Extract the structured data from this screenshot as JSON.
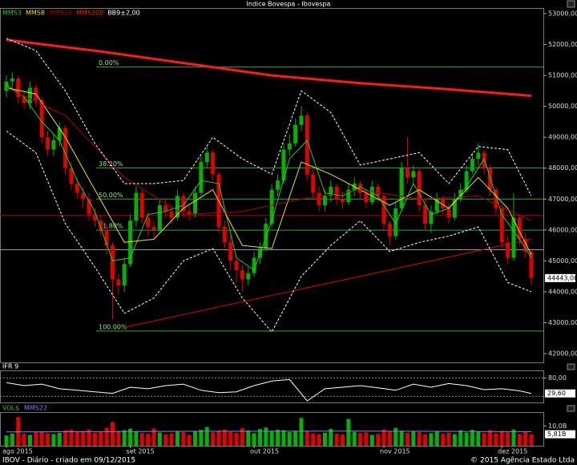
{
  "chart_data": [
    {
      "type": "candlestick",
      "title": "Indice Bovespa - Ibovespa",
      "up_color": "#00b400",
      "down_color": "#e00000",
      "open": [
        50500,
        50800,
        50900,
        50300,
        50100,
        50600,
        50200,
        49000,
        48600,
        48900,
        49300,
        48000,
        47500,
        47200,
        47000,
        46500,
        46300,
        46000,
        45500,
        44400,
        44200,
        44900,
        46300,
        47200,
        46400,
        46100,
        46000,
        46800,
        46600,
        46400,
        47100,
        46600,
        46500,
        47200,
        48200,
        48500,
        47800,
        46100,
        45600,
        45000,
        44700,
        44400,
        44600,
        45100,
        45400,
        46200,
        47300,
        47600,
        48600,
        48800,
        49400,
        49700,
        47800,
        47200,
        46800,
        47100,
        47400,
        47000,
        46900,
        47300,
        47500,
        47200,
        46900,
        47400,
        47100,
        46200,
        45800,
        46700,
        48000,
        47700,
        47900,
        46800,
        46200,
        46600,
        47000,
        46700,
        46400,
        47000,
        47300,
        47900,
        48300,
        48500,
        48000,
        47300,
        46700,
        45600,
        45100,
        46400,
        45700,
        45300
      ],
      "high": [
        51000,
        51100,
        51000,
        50500,
        50800,
        50700,
        50300,
        49200,
        49100,
        49500,
        49400,
        48200,
        47700,
        47400,
        47200,
        46700,
        46500,
        46200,
        45600,
        44600,
        45100,
        46500,
        47400,
        47300,
        46600,
        46300,
        47000,
        47000,
        46800,
        47300,
        47200,
        46800,
        47400,
        48400,
        48700,
        48600,
        47900,
        46300,
        45800,
        45200,
        44900,
        44800,
        45300,
        45600,
        46400,
        47500,
        47800,
        48800,
        49100,
        49600,
        50000,
        49800,
        48000,
        47400,
        47300,
        47600,
        47500,
        47200,
        47500,
        47700,
        47600,
        47300,
        47600,
        47500,
        47200,
        46300,
        46900,
        48200,
        49000,
        48100,
        48000,
        47000,
        46800,
        47200,
        47100,
        46900,
        47200,
        47500,
        48100,
        48500,
        48800,
        48600,
        48100,
        47400,
        46800,
        45800,
        47200,
        46500,
        45900,
        45400
      ],
      "low": [
        50300,
        50600,
        50100,
        49900,
        49900,
        50000,
        48800,
        48400,
        48400,
        48700,
        47800,
        47300,
        47000,
        46700,
        46300,
        46100,
        45800,
        45200,
        43100,
        43900,
        44000,
        44800,
        46100,
        46200,
        45800,
        45700,
        45900,
        46400,
        46200,
        46300,
        46400,
        46300,
        46400,
        47100,
        48000,
        47600,
        45900,
        45400,
        44700,
        44300,
        44000,
        44200,
        44500,
        44900,
        45300,
        46100,
        47100,
        47500,
        48400,
        48700,
        49200,
        47600,
        47000,
        46600,
        46600,
        46900,
        46800,
        46700,
        46800,
        47100,
        47000,
        46700,
        46800,
        46900,
        46000,
        45500,
        45700,
        46600,
        47500,
        47500,
        46600,
        46000,
        45900,
        46500,
        46500,
        46200,
        46300,
        46900,
        47200,
        47800,
        48100,
        47800,
        47100,
        46500,
        45400,
        44900,
        45000,
        45500,
        45100,
        44200
      ],
      "close": [
        50800,
        50900,
        50300,
        50100,
        50600,
        50200,
        49000,
        48600,
        48900,
        49300,
        48000,
        47500,
        47200,
        47000,
        46500,
        46300,
        46000,
        45500,
        44400,
        44200,
        44900,
        46300,
        47200,
        46400,
        46100,
        46000,
        46800,
        46600,
        46400,
        47100,
        46600,
        46500,
        47200,
        48200,
        48500,
        47800,
        46100,
        45600,
        45000,
        44700,
        44400,
        44600,
        45100,
        45400,
        46200,
        47300,
        47600,
        48600,
        48800,
        49400,
        49700,
        47800,
        47200,
        46800,
        47100,
        47400,
        47000,
        46900,
        47300,
        47500,
        47200,
        46900,
        47400,
        47100,
        46200,
        45800,
        46700,
        48000,
        47700,
        47900,
        46800,
        46200,
        46600,
        47000,
        46700,
        46400,
        47000,
        47300,
        47900,
        48300,
        48500,
        48000,
        47300,
        46700,
        45600,
        45100,
        46400,
        45700,
        45300,
        44443
      ],
      "last": {
        "value": 44443,
        "label": "44443,00"
      },
      "series": [
        {
          "name": "MMS3",
          "color": "#22cc22",
          "x": [
            0,
            3,
            6,
            9,
            12,
            15,
            18,
            21,
            24,
            27,
            30,
            33,
            36,
            39,
            42,
            45,
            48,
            51,
            54,
            57,
            60,
            63,
            66,
            69,
            72,
            75,
            78,
            81,
            84,
            87,
            89
          ],
          "values": [
            50700,
            50300,
            49500,
            48900,
            47600,
            46600,
            45000,
            45100,
            46500,
            46600,
            46800,
            47600,
            47500,
            45100,
            44700,
            46300,
            48300,
            48900,
            47200,
            47100,
            47400,
            47100,
            46200,
            47500,
            46500,
            46700,
            47400,
            48300,
            46500,
            45700,
            45100
          ]
        },
        {
          "name": "MMS8",
          "color": "#e6e600",
          "x": [
            0,
            5,
            10,
            15,
            20,
            25,
            30,
            35,
            40,
            45,
            50,
            55,
            60,
            65,
            70,
            75,
            80,
            85,
            89
          ],
          "values": [
            50600,
            50400,
            49000,
            47300,
            45600,
            45700,
            46700,
            47300,
            45500,
            45400,
            48200,
            47800,
            47300,
            46800,
            47300,
            46700,
            47700,
            46700,
            45200
          ]
        },
        {
          "name": "MMS20",
          "color": "#b00000",
          "x": [
            0,
            10,
            20,
            30,
            40,
            50,
            60,
            70,
            80,
            89
          ],
          "values": [
            50600,
            49700,
            47700,
            46500,
            46600,
            47000,
            47300,
            47000,
            47100,
            46300
          ]
        },
        {
          "name": "MMS200",
          "color": "#ff1a1a",
          "width": 3,
          "x": [
            0,
            15,
            30,
            45,
            60,
            75,
            89
          ],
          "values": [
            52150,
            51800,
            51400,
            51000,
            50750,
            50550,
            50340
          ]
        },
        {
          "name": "BB9±2,00",
          "color": "#ffffff",
          "dashed": true,
          "x": [
            0,
            5,
            10,
            15,
            20,
            25,
            30,
            35,
            40,
            45,
            50,
            55,
            60,
            65,
            70,
            75,
            80,
            85,
            89
          ],
          "upper": [
            52200,
            51800,
            50500,
            48800,
            47500,
            47500,
            47600,
            49000,
            48300,
            47800,
            50500,
            49800,
            48100,
            48300,
            48500,
            47500,
            48700,
            48600,
            47100
          ],
          "lower": [
            49200,
            48500,
            46200,
            44800,
            43300,
            43800,
            45000,
            45400,
            43800,
            42700,
            44500,
            45500,
            46300,
            45300,
            45600,
            45800,
            46100,
            44300,
            44000
          ]
        }
      ],
      "levels": [
        {
          "value": 51270,
          "label": "0.00%"
        },
        {
          "value": 48008,
          "label": "38.20%"
        },
        {
          "value": 47000,
          "label": "50.00%"
        },
        {
          "value": 45992,
          "label": "61.80%"
        },
        {
          "value": 42730,
          "label": "100.00%"
        }
      ],
      "level_color": "#2ea82e",
      "hlines": [
        {
          "value": 46470,
          "color": "#b00000"
        },
        {
          "value": 45360,
          "color": "#9a9a9a"
        }
      ],
      "trendline": {
        "color": "#e00000",
        "x": [
          20,
          89
        ],
        "values": [
          42850,
          45700
        ]
      },
      "ylim": [
        41716,
        53180
      ],
      "yticks": [
        {
          "value": 42000,
          "label": "42000,00"
        },
        {
          "value": 43000,
          "label": "43000,00"
        },
        {
          "value": 44000,
          "label": "44000,00"
        },
        {
          "value": 45000,
          "label": "45000,00"
        },
        {
          "value": 46000,
          "label": "46000,00"
        },
        {
          "value": 47000,
          "label": "47000,00"
        },
        {
          "value": 48000,
          "label": "48000,00"
        },
        {
          "value": 49000,
          "label": "49000,00"
        },
        {
          "value": 50000,
          "label": "50000,00"
        },
        {
          "value": 51000,
          "label": "51000,00"
        },
        {
          "value": 52000,
          "label": "52000,00"
        },
        {
          "value": 53000,
          "label": "53000,00"
        }
      ]
    },
    {
      "type": "line",
      "title": "IFR 9",
      "color": "#ffffff",
      "x": [
        0,
        3,
        6,
        9,
        12,
        15,
        18,
        21,
        24,
        27,
        30,
        33,
        36,
        39,
        42,
        45,
        48,
        51,
        54,
        57,
        60,
        63,
        66,
        69,
        72,
        75,
        78,
        81,
        84,
        87,
        89
      ],
      "values": [
        65,
        55,
        60,
        45,
        40,
        35,
        30,
        50,
        45,
        55,
        60,
        40,
        32,
        35,
        55,
        70,
        75,
        5,
        45,
        50,
        55,
        48,
        40,
        60,
        50,
        62,
        55,
        42,
        45,
        38,
        29.6
      ],
      "last": {
        "value": 29.6,
        "label": "29,60"
      },
      "hlines": [
        {
          "value": 80,
          "color": "#888888"
        },
        {
          "value": 20,
          "color": "#888888"
        }
      ],
      "ylim": [
        0,
        105
      ],
      "yticks": [
        {
          "value": 80,
          "label": "80,00"
        }
      ]
    },
    {
      "type": "bar",
      "title": "VOL$",
      "values": [
        5.2,
        6.1,
        14.5,
        6.0,
        5.5,
        6.8,
        7.2,
        6.3,
        5.9,
        6.5,
        7.8,
        8.1,
        6.9,
        7.4,
        8.3,
        6.6,
        7.0,
        9.1,
        12.0,
        7.5,
        7.9,
        8.6,
        7.2,
        6.4,
        6.0,
        8.8,
        6.7,
        5.8,
        6.2,
        7.1,
        6.9,
        5.5,
        7.3,
        8.0,
        9.5,
        6.8,
        7.6,
        8.2,
        7.0,
        6.5,
        8.9,
        7.7,
        6.3,
        8.4,
        9.2,
        7.5,
        8.1,
        7.8,
        6.9,
        7.3,
        14.0,
        7.4,
        6.2,
        5.9,
        6.6,
        8.5,
        6.1,
        5.7,
        13.5,
        7.0,
        6.4,
        6.8,
        5.5,
        6.0,
        8.3,
        7.1,
        9.0,
        7.6,
        6.5,
        7.2,
        6.9,
        5.8,
        6.3,
        7.4,
        6.1,
        6.6,
        5.9,
        7.8,
        6.7,
        8.0,
        7.3,
        6.4,
        7.9,
        6.2,
        7.5,
        6.8,
        8.2,
        6.0,
        6.9,
        5.81
      ],
      "last": {
        "value": 5.81,
        "label": "5,81B"
      },
      "series": [
        {
          "name": "MMS22",
          "color": "#8080ff",
          "x": [
            0,
            30,
            60,
            89
          ],
          "values": [
            7.0,
            7.3,
            7.4,
            7.1
          ]
        }
      ],
      "ylim": [
        0,
        17
      ],
      "yticks": [
        {
          "value": 10,
          "label": "10,0B"
        }
      ],
      "xticks": [
        {
          "value": 0,
          "label": "ago 2015"
        },
        {
          "value": 21,
          "label": "set 2015"
        },
        {
          "value": 42,
          "label": "out 2015"
        },
        {
          "value": 64,
          "label": "nov 2015"
        },
        {
          "value": 84,
          "label": "dez 2015"
        }
      ]
    }
  ],
  "footer": {
    "left": "IBOV - Diário - criado em 09/12/2015",
    "right": "© 2015 Agência Estado Ltda"
  }
}
